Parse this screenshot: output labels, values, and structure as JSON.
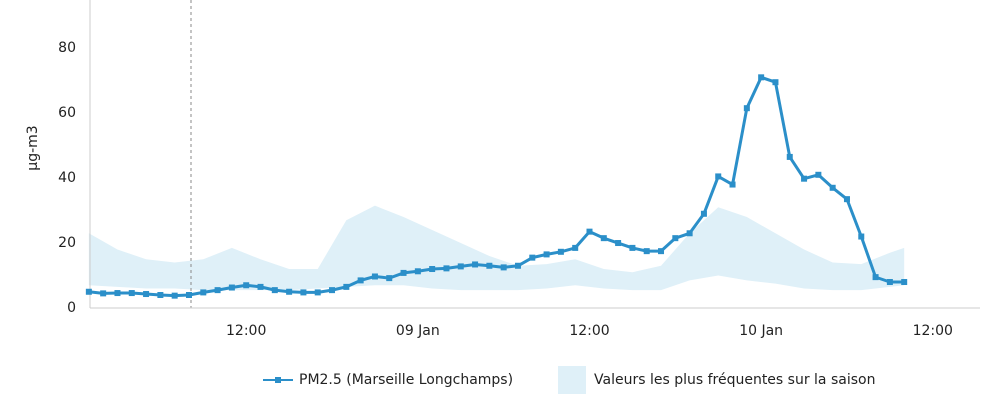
{
  "chart_data": {
    "type": "line",
    "y_label": "µg-m3",
    "x": [
      1,
      2,
      3,
      4,
      5,
      6,
      7,
      8,
      9,
      10,
      11,
      12,
      13,
      14,
      15,
      16,
      17,
      18,
      19,
      20,
      21,
      22,
      23,
      24,
      25,
      26,
      27,
      28,
      29,
      30,
      31,
      32,
      33,
      34,
      35,
      36,
      37,
      38,
      39,
      40,
      41,
      42,
      43,
      44,
      45,
      46,
      47,
      48,
      49,
      50,
      51,
      52,
      53,
      54,
      55,
      56,
      57,
      58
    ],
    "series": [
      {
        "name": "PM2.5 (Marseille Longchamps)",
        "color": "#2b8fc9",
        "values": [
          5,
          4.5,
          4.6,
          4.6,
          4.3,
          4,
          3.8,
          4,
          4.8,
          5.5,
          6.3,
          7,
          6.5,
          5.5,
          5,
          4.8,
          4.8,
          5.5,
          6.5,
          8.5,
          9.7,
          9.2,
          10.8,
          11.3,
          12,
          12.2,
          12.8,
          13.4,
          13,
          12.5,
          13,
          15.5,
          16.5,
          17.3,
          18.5,
          23.5,
          21.5,
          20,
          18.5,
          17.5,
          17.5,
          21.5,
          23,
          29,
          40.5,
          38,
          61.5,
          71,
          69.5,
          46.5,
          39.8,
          41,
          37,
          33.5,
          22,
          9.5,
          8,
          8
        ]
      }
    ],
    "band": {
      "name": "Valeurs les plus fréquentes sur la saison",
      "color": "#dff0f8",
      "x": [
        1,
        3,
        5,
        7,
        9,
        11,
        13,
        15,
        17,
        19,
        21,
        23,
        25,
        27,
        29,
        31,
        33,
        35,
        37,
        39,
        41,
        43,
        45,
        47,
        49,
        51,
        53,
        55,
        57,
        58
      ],
      "lower": [
        7,
        6.5,
        6,
        6,
        5.5,
        5.5,
        5.5,
        5.5,
        6,
        6.5,
        7,
        7,
        6,
        5.5,
        5.5,
        5.5,
        6,
        7,
        6,
        5.5,
        5.5,
        8.5,
        10,
        8.5,
        7.5,
        6,
        5.5,
        5.5,
        6.5,
        7
      ],
      "upper": [
        23,
        18,
        15,
        14,
        15,
        18.5,
        15,
        12,
        12,
        27,
        31.5,
        28,
        24,
        20,
        16,
        13,
        13.5,
        15,
        12,
        11,
        13,
        23,
        31,
        28,
        23,
        18,
        14,
        13.5,
        17,
        18.5
      ]
    },
    "xlim": [
      1.08,
      63.3
    ],
    "xticks": [
      {
        "value": 12,
        "label": "12:00"
      },
      {
        "value": 24,
        "label": "09 Jan"
      },
      {
        "value": 36,
        "label": "12:00"
      },
      {
        "value": 48,
        "label": "10 Jan"
      },
      {
        "value": 60,
        "label": "12:00"
      }
    ],
    "ylim": [
      0,
      94.8
    ],
    "yticks": [
      0,
      20,
      40,
      60,
      80
    ]
  }
}
